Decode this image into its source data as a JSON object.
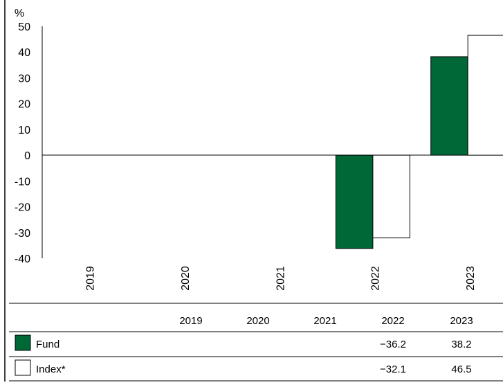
{
  "chart_data": {
    "type": "bar",
    "ylabel": "%",
    "ylim": [
      -40,
      50
    ],
    "yticks": [
      50,
      40,
      30,
      20,
      10,
      0,
      -10,
      -20,
      -30,
      -40
    ],
    "categories": [
      "2019",
      "2020",
      "2021",
      "2022",
      "2023"
    ],
    "series": [
      {
        "name": "Fund",
        "color": "#006837",
        "values": [
          null,
          null,
          null,
          -36.2,
          38.2
        ]
      },
      {
        "name": "Index*",
        "color": "#ffffff",
        "values": [
          null,
          null,
          null,
          -32.1,
          46.5
        ]
      }
    ],
    "table": {
      "headers": [
        "2019",
        "2020",
        "2021",
        "2022",
        "2023"
      ],
      "rows": [
        {
          "label": "Fund",
          "values": [
            "",
            "",
            "",
            "−36.2",
            "38.2"
          ]
        },
        {
          "label": "Index*",
          "values": [
            "",
            "",
            "",
            "−32.1",
            "46.5"
          ]
        }
      ]
    }
  }
}
